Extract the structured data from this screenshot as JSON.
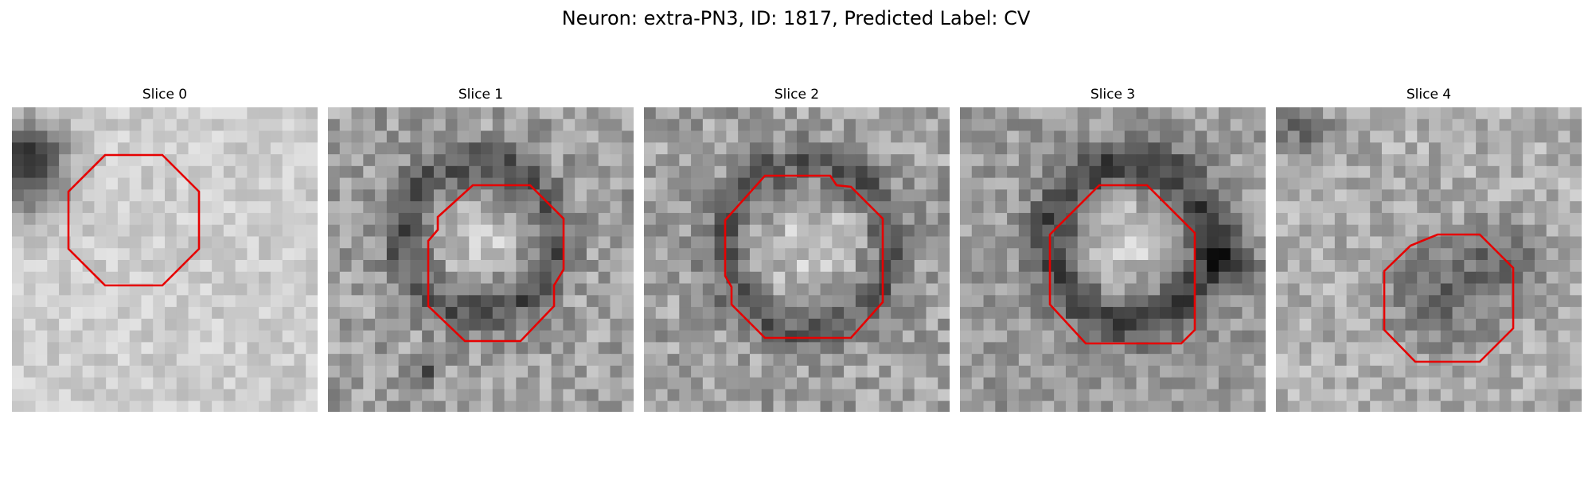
{
  "figure": {
    "title": "Neuron: extra-PN3, ID: 1817, Predicted Label: CV",
    "contour_color": "#e60000",
    "colormap": "gray",
    "panels": [
      {
        "title": "Slice 0"
      },
      {
        "title": "Slice 1"
      },
      {
        "title": "Slice 2"
      },
      {
        "title": "Slice 3"
      },
      {
        "title": "Slice 4"
      }
    ]
  }
}
